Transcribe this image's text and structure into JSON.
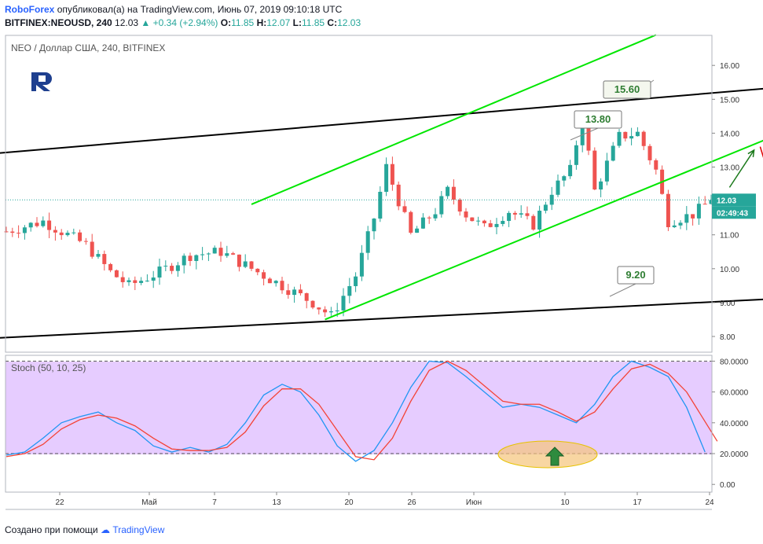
{
  "header": {
    "brand": "RoboForex",
    "published": "опубликовал(а) на TradingView.com, Июнь 07, 2019 09:10:18 UTC",
    "symbol": "BITFINEX:NEOUSD, 240",
    "price": "12.03",
    "change": "+0.34 (+2.94%)",
    "o_label": "O:",
    "o": "11.85",
    "h_label": "H:",
    "h": "12.07",
    "l_label": "L:",
    "l": "11.85",
    "c_label": "C:",
    "c": "12.03"
  },
  "footer": {
    "created": "Создано при помощи",
    "tv": "TradingView"
  },
  "colors": {
    "up": "#26a69a",
    "down": "#ef5350",
    "channel": "#00e600",
    "stoch_k": "#2196f3",
    "stoch_d": "#f44336",
    "stoch_bg": "#e6ccff",
    "accent": "#2962ff"
  },
  "chart_data": [
    {
      "type": "candlestick",
      "title": "NEO / Доллар США, 240, BITFINEX",
      "y_ticks": [
        "16.00",
        "15.00",
        "14.00",
        "13.00",
        "12.00",
        "11.00",
        "10.00",
        "9.00",
        "8.00"
      ],
      "ylim": [
        7.6,
        16.6
      ],
      "x_ticks": [
        "22",
        "Май",
        "7",
        "13",
        "20",
        "26",
        "Июн",
        "10",
        "17",
        "24"
      ],
      "last_price": "12.03",
      "countdown": "02:49:43",
      "price_path": [
        [
          0,
          11.1
        ],
        [
          6,
          11.4
        ],
        [
          10,
          11.0
        ],
        [
          13,
          10.7
        ],
        [
          17,
          9.9
        ],
        [
          20,
          9.5
        ],
        [
          25,
          9.9
        ],
        [
          30,
          10.4
        ],
        [
          35,
          10.5
        ],
        [
          40,
          10.0
        ],
        [
          45,
          9.5
        ],
        [
          50,
          9.0
        ],
        [
          53,
          8.6
        ],
        [
          57,
          9.8
        ],
        [
          60,
          11.5
        ],
        [
          62,
          13.0
        ],
        [
          64,
          12.0
        ],
        [
          66,
          11.0
        ],
        [
          70,
          11.7
        ],
        [
          72,
          12.3
        ],
        [
          75,
          11.6
        ],
        [
          78,
          11.2
        ],
        [
          82,
          11.7
        ],
        [
          86,
          11.3
        ],
        [
          89,
          12.3
        ],
        [
          92,
          12.9
        ],
        [
          94,
          14.5
        ],
        [
          96,
          12.3
        ],
        [
          100,
          13.9
        ],
        [
          103,
          14.0
        ],
        [
          106,
          12.9
        ],
        [
          108,
          11.4
        ],
        [
          112,
          11.6
        ],
        [
          115,
          12.03
        ]
      ],
      "levels": [
        {
          "label": "15.60",
          "value": 15.6
        },
        {
          "label": "13.80",
          "value": 13.8
        },
        {
          "label": "9.20",
          "value": 9.2
        }
      ],
      "trendlines": [
        {
          "color": "black",
          "from": [
            -2,
            13.4
          ],
          "to": [
            149,
            15.7
          ]
        },
        {
          "color": "black",
          "from": [
            -2,
            7.95
          ],
          "to": [
            135,
            9.2
          ]
        },
        {
          "color": "green",
          "from": [
            40,
            11.9
          ],
          "to": [
            106,
            16.9
          ]
        },
        {
          "color": "green",
          "from": [
            52,
            8.5
          ],
          "to": [
            140,
            15.0
          ]
        }
      ],
      "forecast_arrows": [
        {
          "color": "green",
          "from": [
            118,
            12.4
          ],
          "to": [
            122,
            13.5
          ]
        },
        {
          "color": "red",
          "from": [
            123,
            13.6
          ],
          "to": [
            130,
            9.5
          ]
        }
      ],
      "logo": "R-logo"
    },
    {
      "type": "line",
      "title": "Stoch (50, 10, 25)",
      "y_ticks": [
        "80.0000",
        "60.0000",
        "40.0000",
        "20.0000",
        "0.00"
      ],
      "ylim": [
        -8,
        84
      ],
      "bands": [
        20,
        80
      ],
      "series": [
        {
          "name": "",
          "color": "#2196f3",
          "x": [
            0,
            3,
            6,
            9,
            12,
            15,
            18,
            21,
            24,
            27,
            30,
            33,
            36,
            39,
            42,
            45,
            48,
            51,
            54,
            57,
            60,
            63,
            66,
            69,
            72,
            75,
            78,
            81,
            84,
            87,
            90,
            93,
            96,
            99,
            102,
            105,
            108,
            111,
            114
          ],
          "values": [
            19,
            21,
            30,
            40,
            44,
            47,
            40,
            35,
            25,
            21,
            24,
            21,
            26,
            40,
            58,
            65,
            60,
            45,
            25,
            15,
            22,
            40,
            63,
            80,
            79,
            70,
            60,
            50,
            52,
            50,
            45,
            40,
            52,
            70,
            80,
            76,
            70,
            50,
            21
          ]
        },
        {
          "name": "",
          "color": "#f44336",
          "x": [
            0,
            3,
            6,
            9,
            12,
            15,
            18,
            21,
            24,
            27,
            30,
            33,
            36,
            39,
            42,
            45,
            48,
            51,
            54,
            57,
            60,
            63,
            66,
            69,
            72,
            75,
            78,
            81,
            84,
            87,
            90,
            93,
            96,
            99,
            102,
            105,
            108,
            111,
            116
          ],
          "values": [
            18,
            20,
            26,
            36,
            42,
            45,
            43,
            38,
            30,
            23,
            22,
            22,
            24,
            34,
            51,
            62,
            62,
            52,
            35,
            18,
            16,
            30,
            54,
            74,
            80,
            74,
            64,
            54,
            52,
            52,
            47,
            41,
            47,
            62,
            75,
            78,
            72,
            60,
            28
          ]
        }
      ]
    }
  ]
}
